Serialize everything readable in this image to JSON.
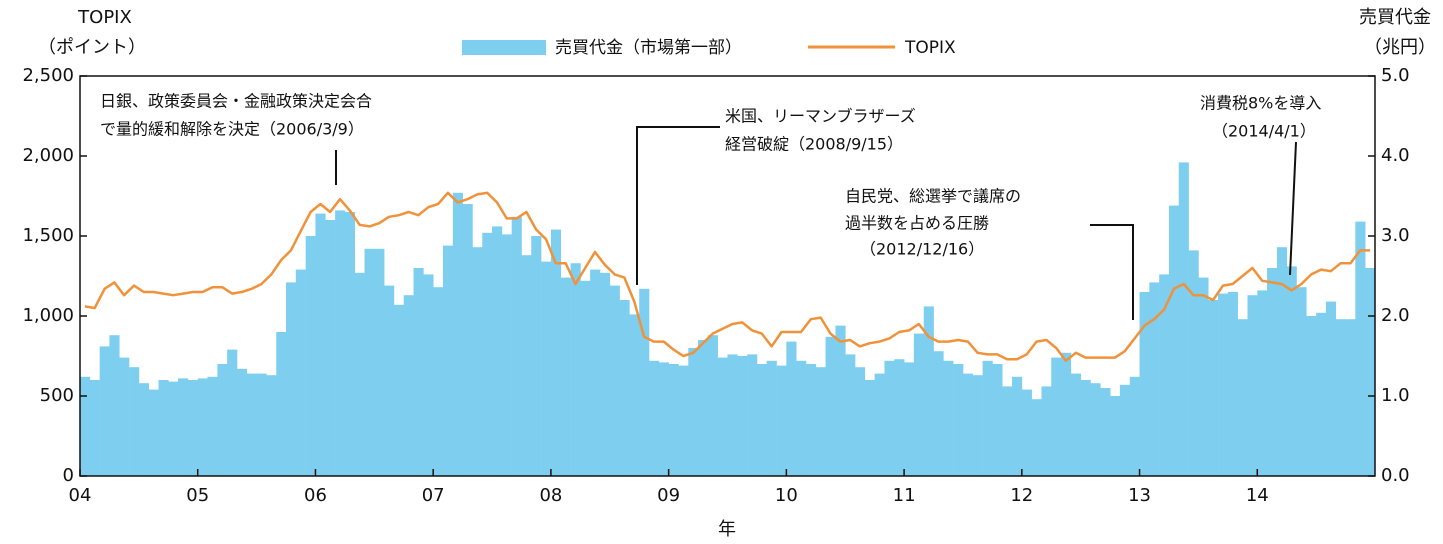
{
  "chart_data": {
    "type": "bar-line",
    "ylabel": [
      "TOPIX",
      "（ポイント）"
    ],
    "y2label": [
      "売買代金",
      "（兆円）"
    ],
    "xlabel": "年",
    "xlim": [
      2004,
      2015
    ],
    "xticks": [
      {
        "value": 2004,
        "label": "04"
      },
      {
        "value": 2005,
        "label": "05"
      },
      {
        "value": 2006,
        "label": "06"
      },
      {
        "value": 2007,
        "label": "07"
      },
      {
        "value": 2008,
        "label": "08"
      },
      {
        "value": 2009,
        "label": "09"
      },
      {
        "value": 2010,
        "label": "10"
      },
      {
        "value": 2011,
        "label": "11"
      },
      {
        "value": 2012,
        "label": "12"
      },
      {
        "value": 2013,
        "label": "13"
      },
      {
        "value": 2014,
        "label": "14"
      }
    ],
    "ylim": [
      0,
      2500
    ],
    "yticks": [
      0,
      500,
      {
        "value": 1000,
        "label": "1,000"
      },
      {
        "value": 1500,
        "label": "1,500"
      },
      {
        "value": 2000,
        "label": "2,000"
      },
      {
        "value": 2500,
        "label": "2,500"
      }
    ],
    "y2lim": [
      0,
      5
    ],
    "y2ticks": [
      {
        "value": 0,
        "label": "0.0"
      },
      {
        "value": 1,
        "label": "1.0"
      },
      {
        "value": 2,
        "label": "2.0"
      },
      {
        "value": 3,
        "label": "3.0"
      },
      {
        "value": 4,
        "label": "4.0"
      },
      {
        "value": 5,
        "label": "5.0"
      }
    ],
    "x": [
      2004,
      2004.083,
      2004.167,
      2004.25,
      2004.333,
      2004.417,
      2004.5,
      2004.583,
      2004.667,
      2004.75,
      2004.833,
      2004.917,
      2005,
      2005.083,
      2005.167,
      2005.25,
      2005.333,
      2005.417,
      2005.5,
      2005.583,
      2005.667,
      2005.75,
      2005.833,
      2005.917,
      2006,
      2006.083,
      2006.167,
      2006.25,
      2006.333,
      2006.417,
      2006.5,
      2006.583,
      2006.667,
      2006.75,
      2006.833,
      2006.917,
      2007,
      2007.083,
      2007.167,
      2007.25,
      2007.333,
      2007.417,
      2007.5,
      2007.583,
      2007.667,
      2007.75,
      2007.833,
      2007.917,
      2008,
      2008.083,
      2008.167,
      2008.25,
      2008.333,
      2008.417,
      2008.5,
      2008.583,
      2008.667,
      2008.75,
      2008.833,
      2008.917,
      2009,
      2009.083,
      2009.167,
      2009.25,
      2009.333,
      2009.417,
      2009.5,
      2009.583,
      2009.667,
      2009.75,
      2009.833,
      2009.917,
      2010,
      2010.083,
      2010.167,
      2010.25,
      2010.333,
      2010.417,
      2010.5,
      2010.583,
      2010.667,
      2010.75,
      2010.833,
      2010.917,
      2011,
      2011.083,
      2011.167,
      2011.25,
      2011.333,
      2011.417,
      2011.5,
      2011.583,
      2011.667,
      2011.75,
      2011.833,
      2011.917,
      2012,
      2012.083,
      2012.167,
      2012.25,
      2012.333,
      2012.417,
      2012.5,
      2012.583,
      2012.667,
      2012.75,
      2012.833,
      2012.917,
      2013,
      2013.083,
      2013.167,
      2013.25,
      2013.333,
      2013.417,
      2013.5,
      2013.583,
      2013.667,
      2013.75,
      2013.833,
      2013.917,
      2014,
      2014.083,
      2014.167,
      2014.25,
      2014.333,
      2014.417,
      2014.5,
      2014.583,
      2014.667,
      2014.75,
      2014.833,
      2014.917
    ],
    "series": [
      {
        "name": "売買代金（市場第一部）",
        "color": "#7ecef0",
        "axis": "y2",
        "kind": "bar",
        "values": [
          1.24,
          1.2,
          1.62,
          1.76,
          1.48,
          1.36,
          1.16,
          1.08,
          1.2,
          1.18,
          1.22,
          1.2,
          1.22,
          1.24,
          1.4,
          1.58,
          1.34,
          1.28,
          1.28,
          1.26,
          1.8,
          2.42,
          2.58,
          3.0,
          3.28,
          3.2,
          3.32,
          3.3,
          2.54,
          2.84,
          2.84,
          2.38,
          2.14,
          2.26,
          2.6,
          2.52,
          2.36,
          2.88,
          3.54,
          3.4,
          2.86,
          3.04,
          3.12,
          3.02,
          3.24,
          2.76,
          3.0,
          2.68,
          3.08,
          2.48,
          2.66,
          2.44,
          2.58,
          2.54,
          2.38,
          2.2,
          2.02,
          2.34,
          1.44,
          1.42,
          1.4,
          1.38,
          1.6,
          1.7,
          1.76,
          1.48,
          1.52,
          1.5,
          1.52,
          1.4,
          1.44,
          1.38,
          1.68,
          1.44,
          1.4,
          1.36,
          1.74,
          1.88,
          1.52,
          1.36,
          1.2,
          1.28,
          1.44,
          1.46,
          1.42,
          1.78,
          2.12,
          1.56,
          1.44,
          1.4,
          1.28,
          1.26,
          1.44,
          1.4,
          1.12,
          1.24,
          1.08,
          0.96,
          1.12,
          1.48,
          1.54,
          1.28,
          1.2,
          1.16,
          1.1,
          1.0,
          1.14,
          1.24,
          2.3,
          2.42,
          2.52,
          3.38,
          3.92,
          2.82,
          2.48,
          2.2,
          2.28,
          2.3,
          1.96,
          2.26,
          2.32,
          2.6,
          2.86,
          2.62,
          2.36,
          2.0,
          2.04,
          2.18,
          1.96,
          1.96,
          3.18,
          2.6
        ]
      },
      {
        "name": "TOPIX",
        "color": "#f0923a",
        "axis": "y",
        "kind": "line",
        "values": [
          1060,
          1050,
          1170,
          1210,
          1130,
          1190,
          1150,
          1150,
          1140,
          1130,
          1140,
          1150,
          1150,
          1180,
          1180,
          1140,
          1150,
          1170,
          1200,
          1260,
          1350,
          1410,
          1530,
          1650,
          1700,
          1650,
          1730,
          1660,
          1570,
          1560,
          1580,
          1620,
          1630,
          1650,
          1630,
          1680,
          1700,
          1770,
          1710,
          1730,
          1760,
          1770,
          1710,
          1610,
          1610,
          1650,
          1540,
          1480,
          1330,
          1330,
          1200,
          1300,
          1400,
          1320,
          1260,
          1240,
          1090,
          870,
          840,
          840,
          790,
          750,
          770,
          830,
          890,
          920,
          950,
          960,
          910,
          890,
          810,
          900,
          900,
          900,
          980,
          990,
          890,
          840,
          850,
          810,
          830,
          840,
          860,
          900,
          910,
          950,
          870,
          840,
          840,
          850,
          840,
          770,
          760,
          760,
          730,
          730,
          760,
          840,
          850,
          800,
          720,
          770,
          740,
          740,
          740,
          740,
          780,
          860,
          940,
          980,
          1040,
          1170,
          1200,
          1130,
          1130,
          1100,
          1190,
          1200,
          1250,
          1300,
          1220,
          1210,
          1200,
          1160,
          1200,
          1260,
          1290,
          1280,
          1330,
          1330,
          1410,
          1410
        ]
      }
    ],
    "annotations": [
      {
        "lines": [
          "日銀、政策委員会・金融政策決定会合",
          "で量的緩和解除を決定（2006/3/9）"
        ]
      },
      {
        "lines": [
          "米国、リーマンブラザーズ",
          "経営破綻（2008/9/15）"
        ]
      },
      {
        "lines": [
          "自民党、総選挙で議席の",
          "過半数を占める圧勝",
          "（2012/12/16）"
        ]
      },
      {
        "lines": [
          "消費税8%を導入",
          "（2014/4/1）"
        ]
      }
    ]
  }
}
